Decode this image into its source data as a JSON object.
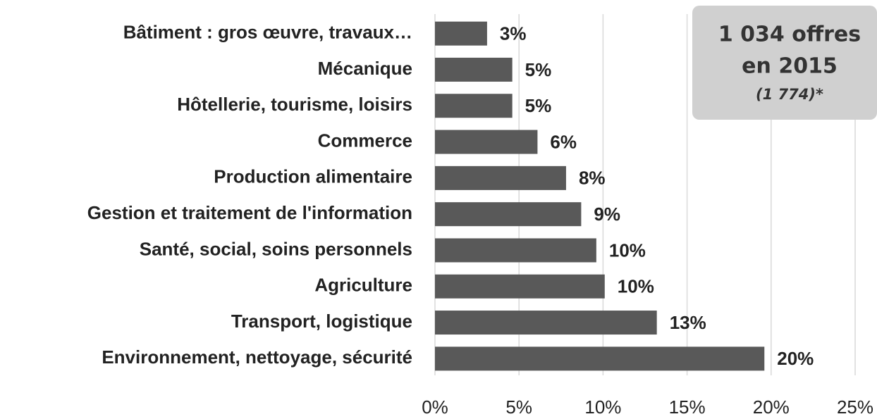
{
  "chart_data": {
    "type": "bar",
    "orientation": "horizontal",
    "categories": [
      "Bâtiment : gros œuvre, travaux…",
      "Mécanique",
      "Hôtellerie, tourisme, loisirs",
      "Commerce",
      "Production alimentaire",
      "Gestion et traitement de l'information",
      "Santé, social, soins personnels",
      "Agriculture",
      "Transport, logistique",
      "Environnement, nettoyage, sécurité"
    ],
    "values": [
      3.1,
      4.6,
      4.6,
      6.1,
      7.8,
      8.7,
      9.6,
      10.1,
      13.2,
      19.6
    ],
    "value_labels": [
      "3%",
      "5%",
      "5%",
      "6%",
      "8%",
      "9%",
      "10%",
      "10%",
      "13%",
      "20%"
    ],
    "color": "#595959",
    "xlim": [
      0,
      25
    ],
    "xticks": [
      {
        "value": 0,
        "label": "0%"
      },
      {
        "value": 5,
        "label": "5%"
      },
      {
        "value": 10,
        "label": "10%"
      },
      {
        "value": 15,
        "label": "15%"
      },
      {
        "value": 20,
        "label": "20%"
      },
      {
        "value": 25,
        "label": "25%"
      }
    ],
    "grid": true,
    "annotation": {
      "line1": "1 034 offres",
      "line2": "en 2015",
      "line3": "(1 774)*"
    }
  }
}
